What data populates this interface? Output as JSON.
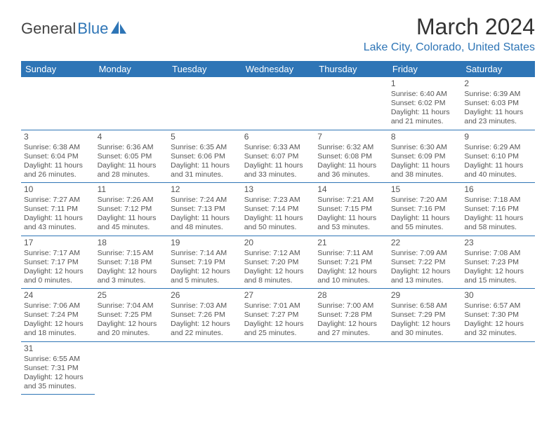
{
  "logo": {
    "text1": "General",
    "text2": "Blue"
  },
  "title": "March 2024",
  "location": "Lake City, Colorado, United States",
  "colors": {
    "accent": "#2e75b6",
    "text": "#555",
    "heading": "#333"
  },
  "weekdays": [
    "Sunday",
    "Monday",
    "Tuesday",
    "Wednesday",
    "Thursday",
    "Friday",
    "Saturday"
  ],
  "startOffset": 5,
  "days": [
    {
      "n": 1,
      "sr": "6:40 AM",
      "ss": "6:02 PM",
      "dl": "11 hours and 21 minutes."
    },
    {
      "n": 2,
      "sr": "6:39 AM",
      "ss": "6:03 PM",
      "dl": "11 hours and 23 minutes."
    },
    {
      "n": 3,
      "sr": "6:38 AM",
      "ss": "6:04 PM",
      "dl": "11 hours and 26 minutes."
    },
    {
      "n": 4,
      "sr": "6:36 AM",
      "ss": "6:05 PM",
      "dl": "11 hours and 28 minutes."
    },
    {
      "n": 5,
      "sr": "6:35 AM",
      "ss": "6:06 PM",
      "dl": "11 hours and 31 minutes."
    },
    {
      "n": 6,
      "sr": "6:33 AM",
      "ss": "6:07 PM",
      "dl": "11 hours and 33 minutes."
    },
    {
      "n": 7,
      "sr": "6:32 AM",
      "ss": "6:08 PM",
      "dl": "11 hours and 36 minutes."
    },
    {
      "n": 8,
      "sr": "6:30 AM",
      "ss": "6:09 PM",
      "dl": "11 hours and 38 minutes."
    },
    {
      "n": 9,
      "sr": "6:29 AM",
      "ss": "6:10 PM",
      "dl": "11 hours and 40 minutes."
    },
    {
      "n": 10,
      "sr": "7:27 AM",
      "ss": "7:11 PM",
      "dl": "11 hours and 43 minutes."
    },
    {
      "n": 11,
      "sr": "7:26 AM",
      "ss": "7:12 PM",
      "dl": "11 hours and 45 minutes."
    },
    {
      "n": 12,
      "sr": "7:24 AM",
      "ss": "7:13 PM",
      "dl": "11 hours and 48 minutes."
    },
    {
      "n": 13,
      "sr": "7:23 AM",
      "ss": "7:14 PM",
      "dl": "11 hours and 50 minutes."
    },
    {
      "n": 14,
      "sr": "7:21 AM",
      "ss": "7:15 PM",
      "dl": "11 hours and 53 minutes."
    },
    {
      "n": 15,
      "sr": "7:20 AM",
      "ss": "7:16 PM",
      "dl": "11 hours and 55 minutes."
    },
    {
      "n": 16,
      "sr": "7:18 AM",
      "ss": "7:16 PM",
      "dl": "11 hours and 58 minutes."
    },
    {
      "n": 17,
      "sr": "7:17 AM",
      "ss": "7:17 PM",
      "dl": "12 hours and 0 minutes."
    },
    {
      "n": 18,
      "sr": "7:15 AM",
      "ss": "7:18 PM",
      "dl": "12 hours and 3 minutes."
    },
    {
      "n": 19,
      "sr": "7:14 AM",
      "ss": "7:19 PM",
      "dl": "12 hours and 5 minutes."
    },
    {
      "n": 20,
      "sr": "7:12 AM",
      "ss": "7:20 PM",
      "dl": "12 hours and 8 minutes."
    },
    {
      "n": 21,
      "sr": "7:11 AM",
      "ss": "7:21 PM",
      "dl": "12 hours and 10 minutes."
    },
    {
      "n": 22,
      "sr": "7:09 AM",
      "ss": "7:22 PM",
      "dl": "12 hours and 13 minutes."
    },
    {
      "n": 23,
      "sr": "7:08 AM",
      "ss": "7:23 PM",
      "dl": "12 hours and 15 minutes."
    },
    {
      "n": 24,
      "sr": "7:06 AM",
      "ss": "7:24 PM",
      "dl": "12 hours and 18 minutes."
    },
    {
      "n": 25,
      "sr": "7:04 AM",
      "ss": "7:25 PM",
      "dl": "12 hours and 20 minutes."
    },
    {
      "n": 26,
      "sr": "7:03 AM",
      "ss": "7:26 PM",
      "dl": "12 hours and 22 minutes."
    },
    {
      "n": 27,
      "sr": "7:01 AM",
      "ss": "7:27 PM",
      "dl": "12 hours and 25 minutes."
    },
    {
      "n": 28,
      "sr": "7:00 AM",
      "ss": "7:28 PM",
      "dl": "12 hours and 27 minutes."
    },
    {
      "n": 29,
      "sr": "6:58 AM",
      "ss": "7:29 PM",
      "dl": "12 hours and 30 minutes."
    },
    {
      "n": 30,
      "sr": "6:57 AM",
      "ss": "7:30 PM",
      "dl": "12 hours and 32 minutes."
    },
    {
      "n": 31,
      "sr": "6:55 AM",
      "ss": "7:31 PM",
      "dl": "12 hours and 35 minutes."
    }
  ]
}
